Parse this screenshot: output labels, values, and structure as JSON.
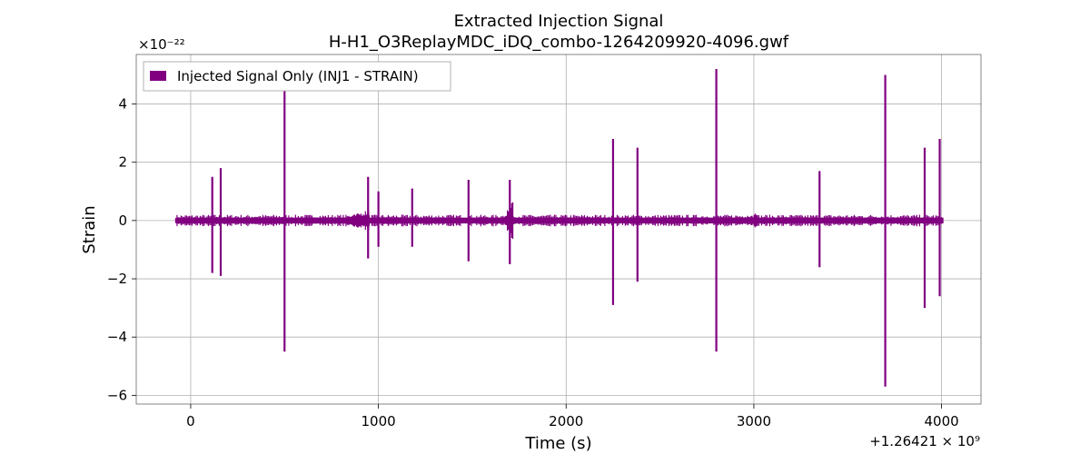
{
  "chart_data": {
    "type": "line",
    "title_lines": [
      "Extracted Injection Signal",
      "H-H1_O3ReplayMDC_iDQ_combo-1264209920-4096.gwf"
    ],
    "xlabel": "Time (s)",
    "ylabel": "Strain",
    "x_offset_label": "+1.26421 × 10⁹",
    "y_scale_label": "×10⁻²²",
    "xlim": [
      -290,
      4210
    ],
    "ylim": [
      -6.3,
      5.7
    ],
    "x_ticks": [
      0,
      1000,
      2000,
      3000,
      4000
    ],
    "x_tick_labels": [
      "0",
      "1000",
      "2000",
      "3000",
      "4000"
    ],
    "y_ticks": [
      -6,
      -4,
      -2,
      0,
      2,
      4
    ],
    "y_tick_labels": [
      "−6",
      "−4",
      "−2",
      "0",
      "2",
      "4"
    ],
    "grid": true,
    "legend_position": "top-left",
    "series": [
      {
        "name": "Injected Signal Only (INJ1 - STRAIN)",
        "color": "#800080",
        "x_range": [
          -80,
          4010
        ],
        "baseline_amplitude": 0.1,
        "spikes": [
          {
            "x": 115,
            "max": 1.5,
            "min": -1.8
          },
          {
            "x": 160,
            "max": 1.8,
            "min": -1.9
          },
          {
            "x": 500,
            "max": 4.5,
            "min": -4.5
          },
          {
            "x": 945,
            "max": 1.5,
            "min": -1.3
          },
          {
            "x": 1000,
            "max": 1.0,
            "min": -0.9
          },
          {
            "x": 1180,
            "max": 1.1,
            "min": -0.9
          },
          {
            "x": 1480,
            "max": 1.4,
            "min": -1.4
          },
          {
            "x": 1700,
            "max": 1.4,
            "min": -1.5
          },
          {
            "x": 2250,
            "max": 2.8,
            "min": -2.9
          },
          {
            "x": 2380,
            "max": 2.5,
            "min": -2.1
          },
          {
            "x": 2800,
            "max": 5.2,
            "min": -4.5
          },
          {
            "x": 3350,
            "max": 1.7,
            "min": -1.6
          },
          {
            "x": 3700,
            "max": 5.0,
            "min": -5.7
          },
          {
            "x": 3910,
            "max": 2.5,
            "min": -3.0
          },
          {
            "x": 3990,
            "max": 2.8,
            "min": -2.6
          }
        ],
        "bursts": [
          {
            "x_start": 600,
            "x_end": 950,
            "amplitude": 0.4
          },
          {
            "x_start": 1600,
            "x_end": 1720,
            "amplitude": 0.8
          },
          {
            "x_start": 2780,
            "x_end": 3020,
            "amplitude": 0.3
          }
        ]
      }
    ]
  }
}
